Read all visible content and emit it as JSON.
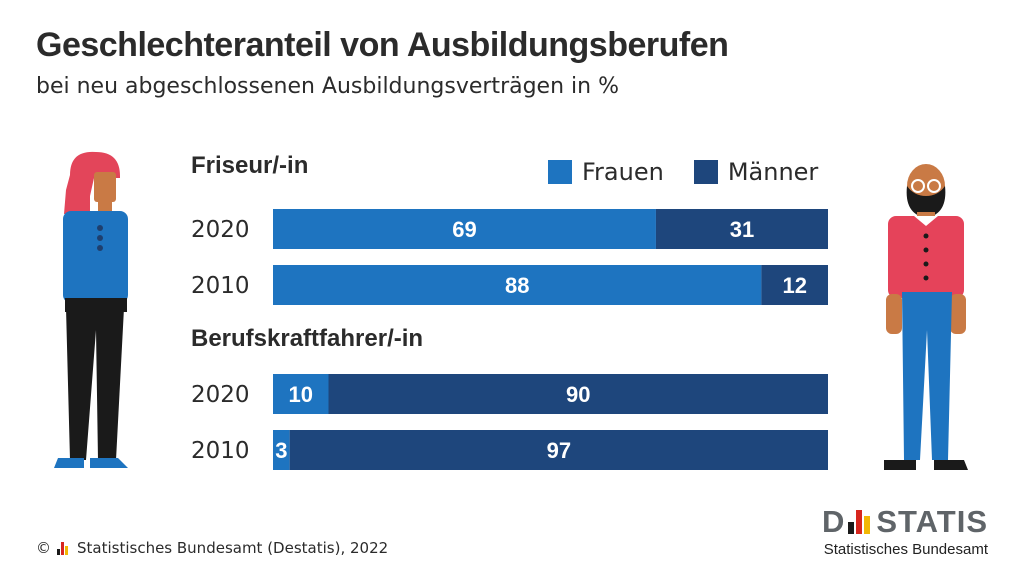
{
  "title": "Geschlechteranteil von Ausbildungsberufen",
  "subtitle": "bei neu abgeschlossenen Ausbildungsverträgen in %",
  "legend": [
    {
      "label": "Frauen",
      "color": "#1e74c0"
    },
    {
      "label": "Männer",
      "color": "#1e467c"
    }
  ],
  "chart_data": {
    "type": "bar",
    "orientation": "horizontal",
    "stacked": true,
    "unit": "%",
    "xlim": [
      0,
      100
    ],
    "groups": [
      {
        "name": "Friseur/-in",
        "rows": [
          {
            "year": "2020",
            "frauen": 69,
            "maenner": 31
          },
          {
            "year": "2010",
            "frauen": 88,
            "maenner": 12
          }
        ]
      },
      {
        "name": "Berufskraftfahrer/-in",
        "rows": [
          {
            "year": "2020",
            "frauen": 10,
            "maenner": 90
          },
          {
            "year": "2010",
            "frauen": 3,
            "maenner": 97
          }
        ]
      }
    ],
    "colors": {
      "frauen": "#1e74c0",
      "maenner": "#1e467c"
    }
  },
  "illustrations": {
    "left": "woman-figure-icon",
    "right": "man-figure-icon"
  },
  "footer": {
    "copyright": "©",
    "source": "Statistisches Bundesamt (Destatis), 2022"
  },
  "logo": {
    "letters_left": "D",
    "letters_right": "STATIS",
    "subtitle": "Statistisches Bundesamt"
  }
}
